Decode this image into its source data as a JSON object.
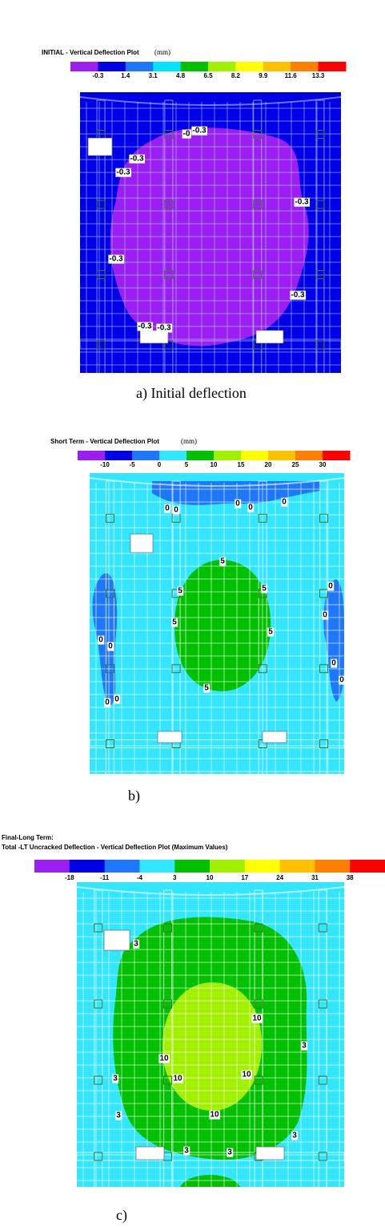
{
  "panels": [
    {
      "title": "INITIAL - Vertical Deflection Plot",
      "unit": "(mm)",
      "legend": {
        "colors": [
          "#9b1ff0",
          "#0000e6",
          "#1e78ff",
          "#00e5ff",
          "#00c000",
          "#a0f000",
          "#ffff00",
          "#ffc000",
          "#ff8000",
          "#ff0000"
        ],
        "labels": [
          "-0.3",
          "1.4",
          "3.1",
          "4.8",
          "6.5",
          "8.2",
          "9.9",
          "11.6",
          "13.3"
        ]
      },
      "contour_labels": [
        "-0",
        "-0.3",
        "-0.3",
        "-0.3",
        "-0.3",
        "-0.3",
        "-0.3",
        "-0.3",
        "-0.3"
      ],
      "caption": "a)   Initial deflection"
    },
    {
      "title": "Short Term - Vertical Deflection Plot",
      "unit": "(mm)",
      "legend": {
        "colors": [
          "#9b1ff0",
          "#0000e6",
          "#1e78ff",
          "#33e6ff",
          "#00c000",
          "#a0f000",
          "#ffff00",
          "#ffc000",
          "#ff8000",
          "#ff0000"
        ],
        "labels": [
          "-10",
          "-5",
          "0",
          "5",
          "10",
          "15",
          "20",
          "25",
          "30"
        ]
      },
      "contour_labels": [
        "0",
        "0",
        "0",
        "0",
        "0",
        "5",
        "5",
        "5",
        "5",
        "5",
        "5",
        "0",
        "0",
        "0",
        "0",
        "0",
        "0",
        "0",
        "0"
      ],
      "caption": "b)"
    },
    {
      "title": "Final-Long Term:",
      "subtitle": "Total -LT Uncracked Deflection - Vertical Deflection Plot (Maximum Values)",
      "legend": {
        "colors": [
          "#9b1ff0",
          "#0000e6",
          "#1e78ff",
          "#33e6ff",
          "#00c000",
          "#a0f000",
          "#ffff00",
          "#ffc000",
          "#ff8000",
          "#ff0000"
        ],
        "labels": [
          "-18",
          "-11",
          "-4",
          "3",
          "10",
          "17",
          "24",
          "31",
          "38"
        ]
      },
      "contour_labels": [
        "3",
        "3",
        "3",
        "3",
        "3",
        "3",
        "3",
        "10",
        "10",
        "10",
        "10",
        "10"
      ],
      "caption": "c)"
    }
  ]
}
